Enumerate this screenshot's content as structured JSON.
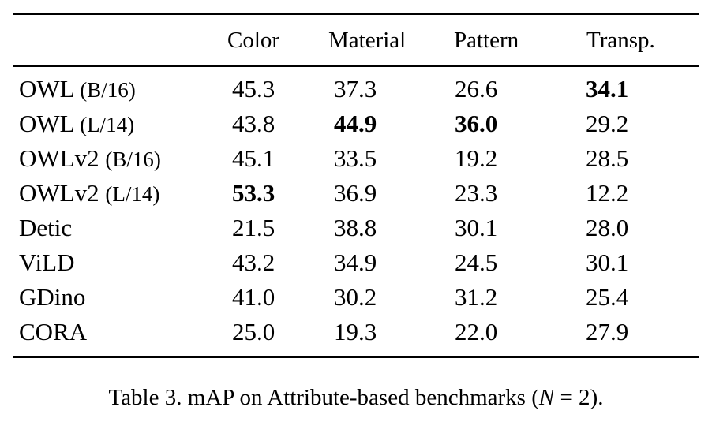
{
  "table": {
    "headers": [
      "",
      "Color",
      "Material",
      "Pattern",
      "Transp."
    ],
    "rows": [
      {
        "model": "OWL",
        "variant": "(B/16)",
        "values": [
          "45.3",
          "37.3",
          "26.6",
          "34.1"
        ],
        "bold": [
          false,
          false,
          false,
          true
        ]
      },
      {
        "model": "OWL",
        "variant": "(L/14)",
        "values": [
          "43.8",
          "44.9",
          "36.0",
          "29.2"
        ],
        "bold": [
          false,
          true,
          true,
          false
        ]
      },
      {
        "model": "OWLv2",
        "variant": "(B/16)",
        "values": [
          "45.1",
          "33.5",
          "19.2",
          "28.5"
        ],
        "bold": [
          false,
          false,
          false,
          false
        ]
      },
      {
        "model": "OWLv2",
        "variant": "(L/14)",
        "values": [
          "53.3",
          "36.9",
          "23.3",
          "12.2"
        ],
        "bold": [
          true,
          false,
          false,
          false
        ]
      },
      {
        "model": "Detic",
        "variant": "",
        "values": [
          "21.5",
          "38.8",
          "30.1",
          "28.0"
        ],
        "bold": [
          false,
          false,
          false,
          false
        ]
      },
      {
        "model": "ViLD",
        "variant": "",
        "values": [
          "43.2",
          "34.9",
          "24.5",
          "30.1"
        ],
        "bold": [
          false,
          false,
          false,
          false
        ]
      },
      {
        "model": "GDino",
        "variant": "",
        "values": [
          "41.0",
          "30.2",
          "31.2",
          "25.4"
        ],
        "bold": [
          false,
          false,
          false,
          false
        ]
      },
      {
        "model": "CORA",
        "variant": "",
        "values": [
          "25.0",
          "19.3",
          "22.0",
          "27.9"
        ],
        "bold": [
          false,
          false,
          false,
          false
        ]
      }
    ]
  },
  "caption": {
    "prefix": "Table 3. mAP on Attribute-based benchmarks (",
    "math_var": "N",
    "math_rest": " = 2",
    "suffix": ")."
  }
}
